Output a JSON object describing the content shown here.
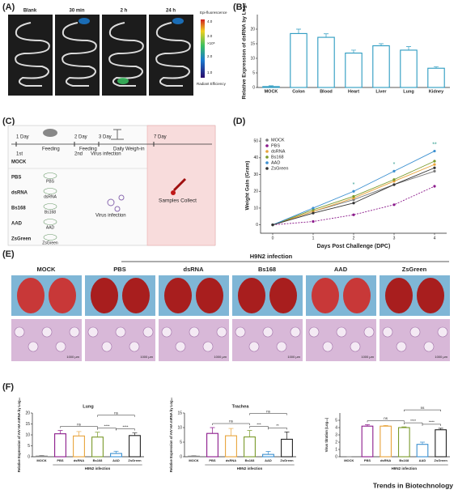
{
  "panel_a": {
    "label": "(A)",
    "columns": [
      "Blank",
      "30 min",
      "2 h",
      "24 h"
    ],
    "colorbar": {
      "title": "Epi-fluorescence",
      "ticks": [
        "4.0",
        "3.0",
        "2.0",
        "1.0"
      ],
      "unit": "×10⁸",
      "label": "Radiant Efficiency"
    }
  },
  "panel_b": {
    "label": "(B)"
  },
  "panel_c": {
    "label": "(C)",
    "days": [
      "1 Day",
      "2 Day",
      "3 Day",
      "7 Day"
    ],
    "steps": [
      "Feeding",
      "Feeding",
      "Daily Weigh-in"
    ],
    "doses": [
      "1st",
      "2nd"
    ],
    "virus_step": "Virus infection",
    "groups": [
      {
        "name": "MOCK"
      },
      {
        "name": "PBS",
        "item": "PBS"
      },
      {
        "name": "dsRNA",
        "item": "dsRNA"
      },
      {
        "name": "Bs168",
        "item": "Bs168"
      },
      {
        "name": "AAD",
        "item": "AAD"
      },
      {
        "name": "ZsGreen",
        "item": "ZsGreen"
      }
    ],
    "virus_label": "Virus infection",
    "collect": "Samples Collect"
  },
  "panel_d": {
    "label": "(D)"
  },
  "panel_e": {
    "label": "(E)",
    "header": "H9N2  infection",
    "columns": [
      "MOCK",
      "PBS",
      "dsRNA",
      "Bs168",
      "AAD",
      "ZsGreen"
    ],
    "scale_bar": "1000 μm"
  },
  "panel_f": {
    "label": "(F)"
  },
  "footer": "Trends in Biotechnology",
  "chart_data": [
    {
      "type": "bar",
      "categories": [
        "MOCK",
        "Colon",
        "Blood",
        "Heart",
        "Liver",
        "Lung",
        "Kidney"
      ],
      "values": [
        0.3,
        18.5,
        17.2,
        11.8,
        14.3,
        12.8,
        6.6
      ],
      "errors": [
        0.3,
        1.5,
        1.2,
        1.0,
        0.7,
        1.2,
        0.5
      ],
      "color": "#2b9ac0",
      "y_label": "Relative Expression of dsRNA by Log₂",
      "ylim": [
        0,
        25
      ],
      "yticks": [
        0,
        5,
        10,
        15,
        20
      ]
    },
    {
      "type": "line",
      "x": [
        0,
        1,
        2,
        3,
        4
      ],
      "xlim": [
        -0.3,
        4.3
      ],
      "xticks": [
        0,
        1,
        2,
        3,
        4
      ],
      "ylim": [
        -5,
        52
      ],
      "yticks": [
        0,
        10,
        20,
        30,
        40,
        50
      ],
      "x_label": "Days Post Challenge (DPC)",
      "y_label": "Weight Gain (Gram)",
      "legend": "upper left",
      "series": [
        {
          "name": "MOCK",
          "color": "#777777",
          "values": [
            0,
            8,
            15,
            24,
            32
          ]
        },
        {
          "name": "PBS",
          "color": "#8b1a8b",
          "values": [
            0,
            2,
            6,
            12,
            23
          ]
        },
        {
          "name": "dsRNA",
          "color": "#e8a33a",
          "values": [
            0,
            8,
            16,
            26,
            36
          ]
        },
        {
          "name": "Bs168",
          "color": "#7a9a2a",
          "values": [
            0,
            9,
            17,
            27,
            38
          ]
        },
        {
          "name": "AAD",
          "color": "#3a8fd0",
          "values": [
            0,
            10,
            20,
            32,
            44
          ]
        },
        {
          "name": "ZsGreen",
          "color": "#333333",
          "values": [
            0,
            7,
            13,
            24,
            34
          ]
        }
      ],
      "annotations": [
        {
          "text": "*",
          "x": 2
        },
        {
          "text": "*",
          "x": 3
        },
        {
          "text": "**",
          "x": 4
        }
      ]
    },
    {
      "type": "bar",
      "title": "Lung",
      "categories": [
        "MOCK",
        "PBS",
        "dsRNA",
        "Bs168",
        "AAD",
        "ZsGreen"
      ],
      "values": [
        0.3,
        10.5,
        9.5,
        9,
        1.5,
        9.7
      ],
      "errors": [
        0.3,
        1.5,
        2,
        2.2,
        1,
        1.2
      ],
      "colors": [
        "#888888",
        "#8b1a8b",
        "#e8a33a",
        "#7a9a2a",
        "#3a8fd0",
        "#222222"
      ],
      "y_label": "Relative Expression of AIV HA mRNA by Log₁₀",
      "ylim": [
        0,
        20
      ],
      "yticks": [
        0,
        5,
        10,
        15,
        20
      ],
      "group_label": "H9N2 infection",
      "comparisons": [
        {
          "from": "Bs168",
          "to": "ZsGreen",
          "label": "ns"
        },
        {
          "from": "PBS",
          "to": "Bs168",
          "label": "ns"
        },
        {
          "from": "Bs168",
          "to": "AAD",
          "label": "****"
        },
        {
          "from": "AAD",
          "to": "ZsGreen",
          "label": "****"
        }
      ]
    },
    {
      "type": "bar",
      "title": "Trachea",
      "categories": [
        "MOCK",
        "PBS",
        "dsRNA",
        "Bs168",
        "AAD",
        "ZsGreen"
      ],
      "values": [
        0.2,
        8,
        7.2,
        6.8,
        0.8,
        6
      ],
      "errors": [
        0.2,
        2,
        2.5,
        2.2,
        1,
        2.5
      ],
      "colors": [
        "#888888",
        "#8b1a8b",
        "#e8a33a",
        "#7a9a2a",
        "#3a8fd0",
        "#222222"
      ],
      "y_label": "Relative Expression of AIV HA mRNA by Log₁₀",
      "ylim": [
        0,
        15
      ],
      "yticks": [
        0,
        5,
        10,
        15
      ],
      "group_label": "H9N2 infection",
      "comparisons": [
        {
          "from": "Bs168",
          "to": "ZsGreen",
          "label": "ns"
        },
        {
          "from": "PBS",
          "to": "Bs168",
          "label": "ns"
        },
        {
          "from": "Bs168",
          "to": "AAD",
          "label": "***"
        },
        {
          "from": "AAD",
          "to": "ZsGreen",
          "label": "**"
        }
      ]
    },
    {
      "type": "bar",
      "categories": [
        "MOCK",
        "PBS",
        "dsRNA",
        "Bs168",
        "AAD",
        "ZsGreen"
      ],
      "values": [
        0,
        4.2,
        4.2,
        4.0,
        1.7,
        3.7
      ],
      "errors": [
        0,
        0.2,
        0.1,
        0.1,
        0.3,
        0.2
      ],
      "colors": [
        "#888888",
        "#8b1a8b",
        "#e8a33a",
        "#7a9a2a",
        "#3a8fd0",
        "#222222"
      ],
      "y_label": "Virus titration (Log₁₀)",
      "ylim": [
        0,
        6
      ],
      "yticks": [
        0,
        1,
        2,
        3,
        4,
        5
      ],
      "group_label": "H9N2 infection",
      "comparisons": [
        {
          "from": "Bs168",
          "to": "ZsGreen",
          "label": "ns"
        },
        {
          "from": "PBS",
          "to": "Bs168",
          "label": "ns"
        },
        {
          "from": "Bs168",
          "to": "AAD",
          "label": "****"
        },
        {
          "from": "AAD",
          "to": "ZsGreen",
          "label": "****"
        }
      ]
    }
  ]
}
